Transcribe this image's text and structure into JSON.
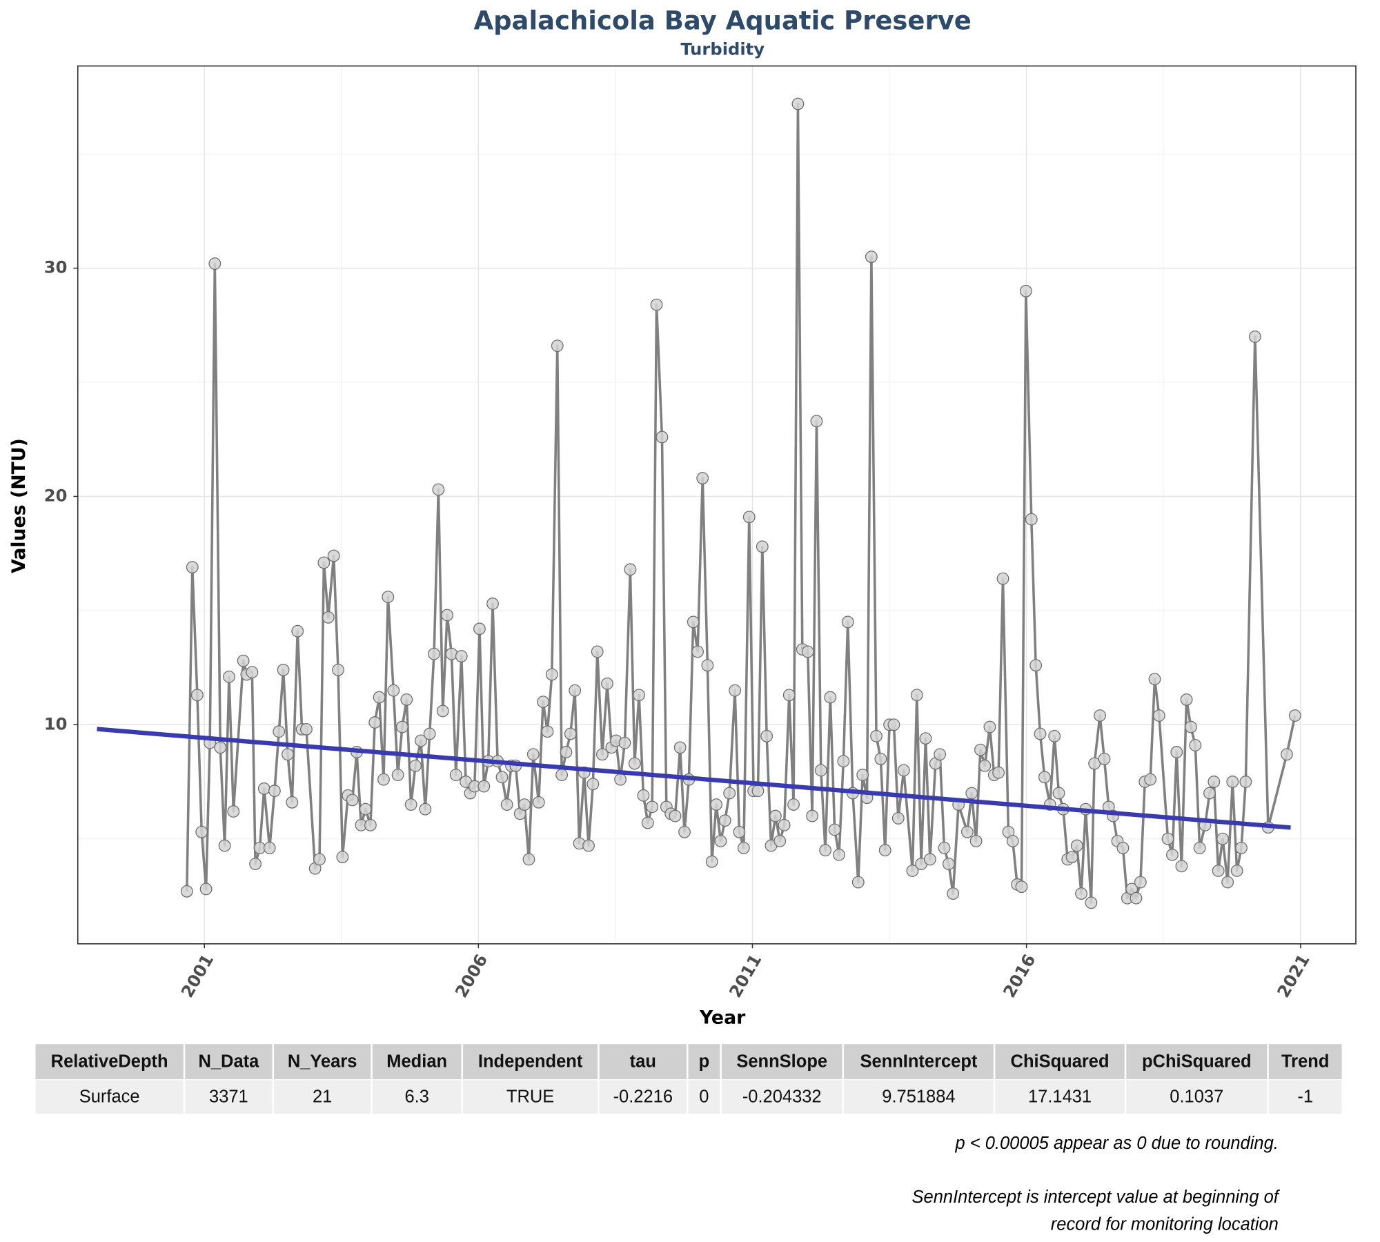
{
  "chart_data": {
    "type": "line",
    "title": "Apalachicola Bay Aquatic Preserve",
    "subtitle": "Turbidity",
    "x_label": "Year",
    "y_label": "Values (NTU)",
    "xlim": [
      1998.69,
      2022.01
    ],
    "xticks": [
      2001,
      2006,
      2011,
      2016,
      2021
    ],
    "ylim": [
      0.4,
      38.86
    ],
    "yticks": [
      10,
      20,
      30
    ],
    "grid": true,
    "series": [
      {
        "color": "#808080",
        "markers": true,
        "x": [
          2000.68,
          2000.78,
          2000.87,
          2000.95,
          2001.03,
          2001.1,
          2001.19,
          2001.29,
          2001.37,
          2001.45,
          2001.53,
          2001.71,
          2001.77,
          2001.87,
          2001.93,
          2002.01,
          2002.09,
          2002.19,
          2002.28,
          2002.36,
          2002.44,
          2002.52,
          2002.6,
          2002.7,
          2002.78,
          2002.86,
          2003.02,
          2003.1,
          2003.18,
          2003.26,
          2003.36,
          2003.44,
          2003.52,
          2003.62,
          2003.7,
          2003.78,
          2003.86,
          2003.94,
          2004.03,
          2004.11,
          2004.19,
          2004.27,
          2004.35,
          2004.45,
          2004.53,
          2004.61,
          2004.69,
          2004.77,
          2004.85,
          2004.95,
          2005.03,
          2005.11,
          2005.19,
          2005.27,
          2005.35,
          2005.43,
          2005.51,
          2005.59,
          2005.69,
          2005.77,
          2005.85,
          2005.93,
          2006.02,
          2006.1,
          2006.18,
          2006.26,
          2006.35,
          2006.43,
          2006.52,
          2006.6,
          2006.68,
          2006.76,
          2006.84,
          2006.92,
          2007.0,
          2007.1,
          2007.18,
          2007.26,
          2007.34,
          2007.44,
          2007.52,
          2007.6,
          2007.68,
          2007.76,
          2007.84,
          2007.93,
          2008.01,
          2008.09,
          2008.17,
          2008.26,
          2008.35,
          2008.43,
          2008.51,
          2008.59,
          2008.67,
          2008.77,
          2008.85,
          2008.93,
          2009.01,
          2009.09,
          2009.17,
          2009.25,
          2009.35,
          2009.43,
          2009.51,
          2009.59,
          2009.68,
          2009.76,
          2009.84,
          2009.92,
          2010.0,
          2010.09,
          2010.18,
          2010.26,
          2010.34,
          2010.42,
          2010.5,
          2010.58,
          2010.68,
          2010.76,
          2010.84,
          2010.94,
          2011.02,
          2011.1,
          2011.18,
          2011.26,
          2011.34,
          2011.42,
          2011.5,
          2011.58,
          2011.67,
          2011.75,
          2011.83,
          2011.91,
          2012.01,
          2012.09,
          2012.17,
          2012.25,
          2012.33,
          2012.42,
          2012.5,
          2012.58,
          2012.66,
          2012.74,
          2012.83,
          2012.93,
          2013.01,
          2013.09,
          2013.17,
          2013.26,
          2013.34,
          2013.42,
          2013.5,
          2013.58,
          2013.66,
          2013.76,
          2013.92,
          2014.0,
          2014.08,
          2014.16,
          2014.24,
          2014.34,
          2014.42,
          2014.5,
          2014.58,
          2014.66,
          2014.76,
          2014.92,
          2015.0,
          2015.08,
          2015.16,
          2015.24,
          2015.33,
          2015.41,
          2015.49,
          2015.57,
          2015.67,
          2015.75,
          2015.83,
          2015.91,
          2015.99,
          2016.09,
          2016.17,
          2016.25,
          2016.33,
          2016.43,
          2016.51,
          2016.59,
          2016.67,
          2016.75,
          2016.83,
          2016.92,
          2017.0,
          2017.08,
          2017.18,
          2017.24,
          2017.34,
          2017.42,
          2017.5,
          2017.58,
          2017.66,
          2017.76,
          2017.84,
          2017.92,
          2018.0,
          2018.08,
          2018.16,
          2018.26,
          2018.34,
          2018.42,
          2018.58,
          2018.66,
          2018.74,
          2018.83,
          2018.92,
          2019.0,
          2019.08,
          2019.16,
          2019.26,
          2019.34,
          2019.42,
          2019.5,
          2019.58,
          2019.67,
          2019.76,
          2019.84,
          2019.92,
          2020.0,
          2020.17,
          2020.41,
          2020.75,
          2020.9
        ],
        "values": [
          2.7,
          16.9,
          11.3,
          5.3,
          2.8,
          9.2,
          30.2,
          9.0,
          4.7,
          12.1,
          6.2,
          12.8,
          12.2,
          12.3,
          3.9,
          4.6,
          7.2,
          4.6,
          7.1,
          9.7,
          12.4,
          8.7,
          6.6,
          14.1,
          9.8,
          9.8,
          3.7,
          4.1,
          17.1,
          14.7,
          17.4,
          12.4,
          4.2,
          6.9,
          6.7,
          8.8,
          5.6,
          6.3,
          5.6,
          10.1,
          11.2,
          7.6,
          15.6,
          11.5,
          7.8,
          9.9,
          11.1,
          6.5,
          8.2,
          9.3,
          6.3,
          9.6,
          13.1,
          20.3,
          10.6,
          14.8,
          13.1,
          7.8,
          13.0,
          7.5,
          7.0,
          7.3,
          14.2,
          7.3,
          8.4,
          15.3,
          8.4,
          7.7,
          6.5,
          8.2,
          8.2,
          6.1,
          6.5,
          4.1,
          8.7,
          6.6,
          11.0,
          9.7,
          12.2,
          26.6,
          7.8,
          8.8,
          9.6,
          11.5,
          4.8,
          7.9,
          4.7,
          7.4,
          13.2,
          8.7,
          11.8,
          9.0,
          9.3,
          7.6,
          9.2,
          16.8,
          8.3,
          11.3,
          6.9,
          5.7,
          6.4,
          28.4,
          22.6,
          6.4,
          6.1,
          6.0,
          9.0,
          5.3,
          7.6,
          14.5,
          13.2,
          20.8,
          12.6,
          4.0,
          6.5,
          4.9,
          5.8,
          7.0,
          11.5,
          5.3,
          4.6,
          19.1,
          7.1,
          7.1,
          17.8,
          9.5,
          4.7,
          6.0,
          4.9,
          5.6,
          11.3,
          6.5,
          37.2,
          13.3,
          13.2,
          6.0,
          23.3,
          8.0,
          4.5,
          11.2,
          5.4,
          4.3,
          8.4,
          14.5,
          7.0,
          3.1,
          7.8,
          6.8,
          30.5,
          9.5,
          8.5,
          4.5,
          10.0,
          10.0,
          5.9,
          8.0,
          3.6,
          11.3,
          3.9,
          9.4,
          4.1,
          8.3,
          8.7,
          4.6,
          3.9,
          2.6,
          6.5,
          5.3,
          7.0,
          4.9,
          8.9,
          8.2,
          9.9,
          7.8,
          7.9,
          16.4,
          5.3,
          4.9,
          3.0,
          2.9,
          29.0,
          19.0,
          12.6,
          9.6,
          7.7,
          6.5,
          9.5,
          7.0,
          6.3,
          4.1,
          4.2,
          4.7,
          2.6,
          6.3,
          2.2,
          8.3,
          10.4,
          8.5,
          6.4,
          6.0,
          4.9,
          4.6,
          2.4,
          2.8,
          2.4,
          3.1,
          7.5,
          7.6,
          12.0,
          10.4,
          5.0,
          4.3,
          8.8,
          3.8,
          11.1,
          9.9,
          9.1,
          4.6,
          5.6,
          7.0,
          7.5,
          3.6,
          5.0,
          3.1,
          7.5,
          3.6,
          4.6,
          7.5,
          27.0,
          5.5,
          8.7,
          10.4
        ]
      },
      {
        "color": "#3a3ab0",
        "markers": false,
        "x": [
          1999.04,
          2020.82
        ],
        "values": [
          9.81,
          5.49
        ]
      }
    ]
  },
  "table": {
    "header": [
      "RelativeDepth",
      "N_Data",
      "N_Years",
      "Median",
      "Independent",
      "tau",
      "p",
      "SennSlope",
      "SennIntercept",
      "ChiSquared",
      "pChiSquared",
      "Trend"
    ],
    "rows": [
      [
        "Surface",
        "3371",
        "21",
        "6.3",
        "TRUE",
        "-0.2216",
        "0",
        "-0.204332",
        "9.751884",
        "17.1431",
        "0.1037",
        "-1"
      ]
    ]
  },
  "notes": [
    "p < 0.00005 appear as 0 due to rounding.",
    "SennIntercept is intercept value at beginning of",
    "record for monitoring location"
  ]
}
